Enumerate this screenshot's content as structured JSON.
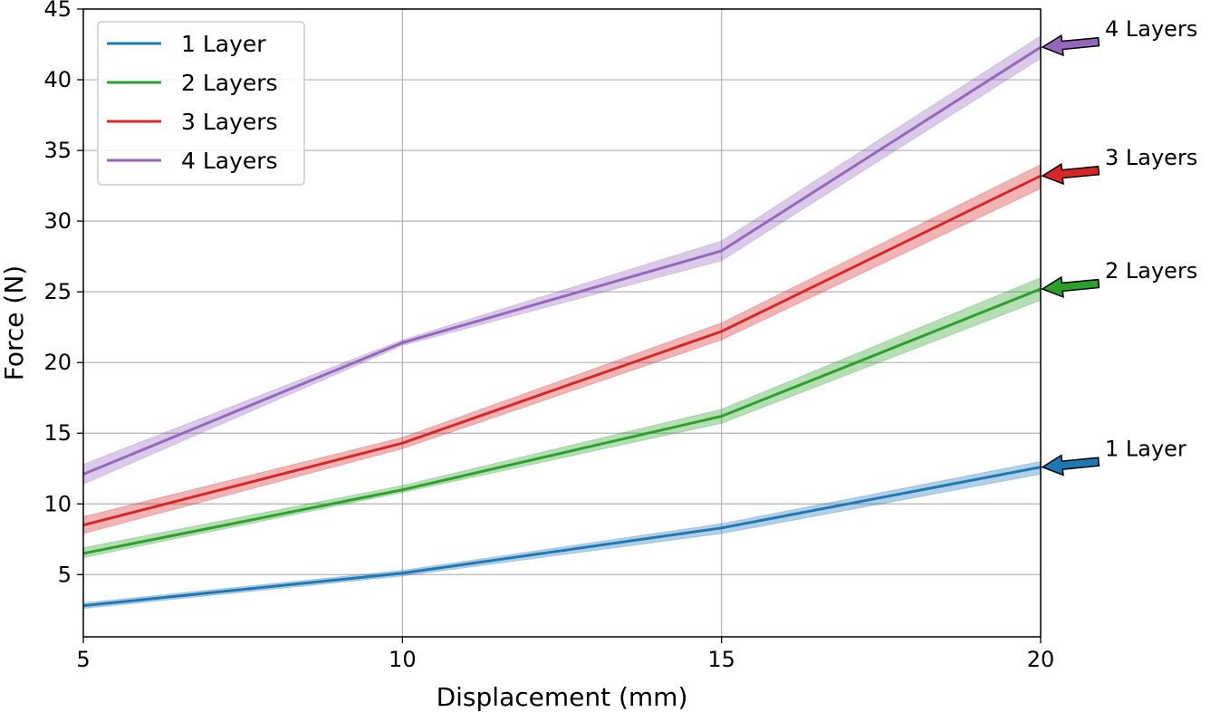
{
  "chart_data": {
    "type": "line",
    "xlabel": "Displacement (mm)",
    "ylabel": "Force (N)",
    "xlim": [
      5,
      20
    ],
    "ylim": [
      0.6,
      45
    ],
    "xticks": [
      5,
      10,
      15,
      20
    ],
    "yticks": [
      5,
      10,
      15,
      20,
      25,
      30,
      35,
      40,
      45
    ],
    "grid": true,
    "legend_position": "top-left",
    "x": [
      5,
      10,
      15,
      20
    ],
    "series": [
      {
        "name": "1 Layer",
        "color": "#1f77b4",
        "values": [
          2.8,
          5.1,
          8.3,
          12.6
        ],
        "band": [
          [
            2.6,
            3.0
          ],
          [
            4.9,
            5.3
          ],
          [
            7.9,
            8.6
          ],
          [
            12.1,
            13.0
          ]
        ]
      },
      {
        "name": "2 Layers",
        "color": "#2ca02c",
        "values": [
          6.5,
          11.0,
          16.2,
          25.2
        ],
        "band": [
          [
            6.2,
            6.9
          ],
          [
            10.8,
            11.3
          ],
          [
            15.7,
            16.7
          ],
          [
            24.4,
            26.0
          ]
        ]
      },
      {
        "name": "3 Layers",
        "color": "#d62728",
        "values": [
          8.5,
          14.3,
          22.2,
          33.2
        ],
        "band": [
          [
            7.9,
            9.1
          ],
          [
            13.9,
            14.7
          ],
          [
            21.6,
            22.8
          ],
          [
            32.3,
            34.0
          ]
        ]
      },
      {
        "name": "4 Layers",
        "color": "#9467bd",
        "values": [
          12.1,
          21.4,
          27.9,
          42.3
        ],
        "band": [
          [
            11.4,
            12.8
          ],
          [
            21.2,
            21.6
          ],
          [
            27.2,
            28.6
          ],
          [
            41.5,
            43.1
          ]
        ]
      }
    ],
    "annotations": [
      {
        "text": "4 Layers",
        "series": 3
      },
      {
        "text": "3 Layers",
        "series": 2
      },
      {
        "text": "2 Layers",
        "series": 1
      },
      {
        "text": "1 Layer",
        "series": 0
      }
    ]
  }
}
